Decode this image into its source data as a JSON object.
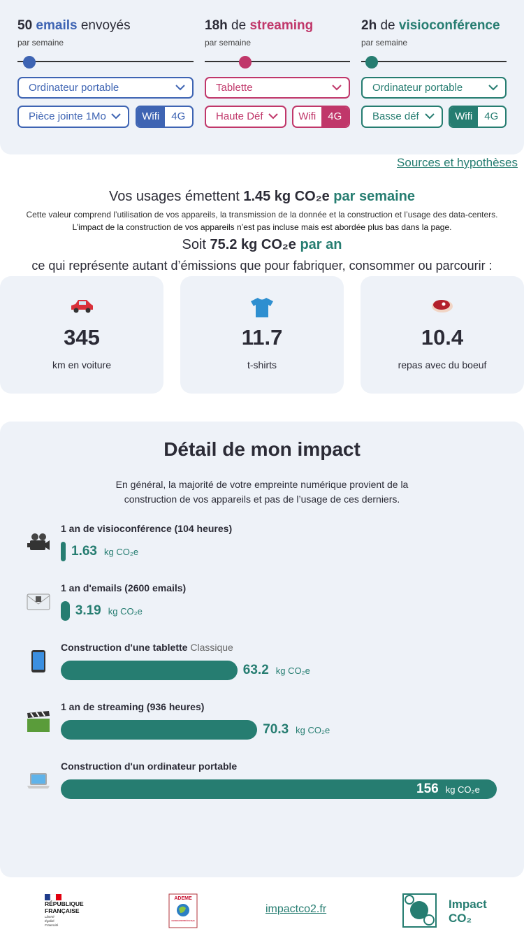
{
  "usage_settings": [
    {
      "count": "50",
      "unit": "emails",
      "suffix": "envoyés",
      "period": "par semaine",
      "device": "Ordinateur portable",
      "option": "Pièce jointe 1Mo",
      "network": [
        "Wifi",
        "4G"
      ],
      "active": "Wifi",
      "color": "#3e64b3"
    },
    {
      "count": "18h",
      "unit": "streaming",
      "prefix": "de",
      "period": "par semaine",
      "device": "Tablette",
      "option": "Haute Déf",
      "network": [
        "Wifi",
        "4G"
      ],
      "active": "4G",
      "color": "#c0376a"
    },
    {
      "count": "2h",
      "unit": "visioconférence",
      "prefix": "de",
      "period": "par semaine",
      "device": "Ordinateur portable",
      "option": "Basse déf",
      "network": [
        "Wifi",
        "4G"
      ],
      "active": "Wifi",
      "color": "#267d71"
    }
  ],
  "sources_link": "Sources et hypothèses",
  "summary": {
    "weekly_prefix": "Vos usages émettent",
    "weekly_value": "1.45 kg CO₂e",
    "weekly_suffix": "par semaine",
    "note_1": "Cette valeur comprend l’utilisation de vos appareils, la transmission de la donnée et la construction et l’usage des data-centers.",
    "note_2": "L’impact de la construction de vos appareils n’est pas incluse mais est abordée plus bas dans la page.",
    "yearly_prefix": "Soit",
    "yearly_value": "75.2 kg CO₂e",
    "yearly_suffix": "par an",
    "equivalents_intro": "ce qui représente autant d’émissions que pour fabriquer, consommer ou parcourir :"
  },
  "equivalents": [
    {
      "value": 345,
      "label": "km en voiture"
    },
    {
      "value": 11.7,
      "label": "t-shirts"
    },
    {
      "value": 10.4,
      "label": "repas avec du boeuf"
    }
  ],
  "detail": {
    "title": "Détail de mon impact",
    "intro": "En général, la majorité de votre empreinte numérique provient de la construction de vos appareils et pas de l’usage de ces derniers.",
    "unit": "kg CO₂e",
    "color": "#267d71",
    "items": [
      {
        "label": "1 an de visioconférence (104 heures)",
        "value": 1.63
      },
      {
        "label": "1 an d'emails (2600 emails)",
        "value": 3.19
      },
      {
        "label": "Construction d'une tablette",
        "sublabel": "Classique",
        "value": 63.2
      },
      {
        "label": "1 an de streaming (936 heures)",
        "value": 70.3
      },
      {
        "label": "Construction d'un ordinateur portable",
        "value": 156
      }
    ]
  },
  "footer": {
    "rf_name": [
      "RÉPUBLIQUE",
      "FRANÇAISE"
    ],
    "rf_motto": [
      "Liberté",
      "Égalité",
      "Fraternité"
    ],
    "ademe_name": "ADEME",
    "ademe_subtitle": "AGENCE DE LA TRANSITION ÉCOLOGIQUE",
    "site_link": "impactco2.fr",
    "logo_name": [
      "Impact",
      "CO₂"
    ]
  }
}
